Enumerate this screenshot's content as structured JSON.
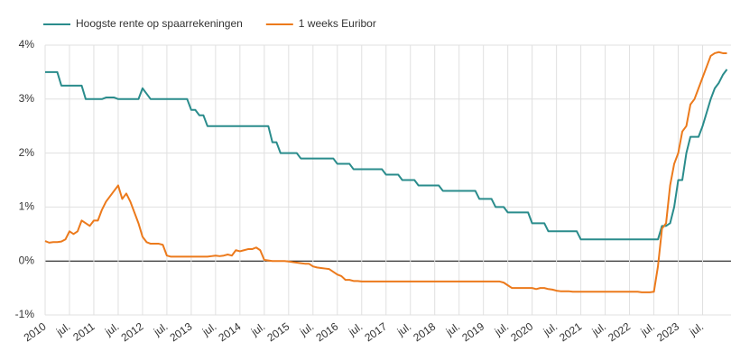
{
  "chart_data": {
    "type": "line",
    "x": [
      "2010-01",
      "2010-02",
      "2010-03",
      "2010-04",
      "2010-05",
      "2010-06",
      "2010-07",
      "2010-08",
      "2010-09",
      "2010-10",
      "2010-11",
      "2010-12",
      "2011-01",
      "2011-02",
      "2011-03",
      "2011-04",
      "2011-05",
      "2011-06",
      "2011-07",
      "2011-08",
      "2011-09",
      "2011-10",
      "2011-11",
      "2011-12",
      "2012-01",
      "2012-02",
      "2012-03",
      "2012-04",
      "2012-05",
      "2012-06",
      "2012-07",
      "2012-08",
      "2012-09",
      "2012-10",
      "2012-11",
      "2012-12",
      "2013-01",
      "2013-02",
      "2013-03",
      "2013-04",
      "2013-05",
      "2013-06",
      "2013-07",
      "2013-08",
      "2013-09",
      "2013-10",
      "2013-11",
      "2013-12",
      "2014-01",
      "2014-02",
      "2014-03",
      "2014-04",
      "2014-05",
      "2014-06",
      "2014-07",
      "2014-08",
      "2014-09",
      "2014-10",
      "2014-11",
      "2014-12",
      "2015-01",
      "2015-02",
      "2015-03",
      "2015-04",
      "2015-05",
      "2015-06",
      "2015-07",
      "2015-08",
      "2015-09",
      "2015-10",
      "2015-11",
      "2015-12",
      "2016-01",
      "2016-02",
      "2016-03",
      "2016-04",
      "2016-05",
      "2016-06",
      "2016-07",
      "2016-08",
      "2016-09",
      "2016-10",
      "2016-11",
      "2016-12",
      "2017-01",
      "2017-02",
      "2017-03",
      "2017-04",
      "2017-05",
      "2017-06",
      "2017-07",
      "2017-08",
      "2017-09",
      "2017-10",
      "2017-11",
      "2017-12",
      "2018-01",
      "2018-02",
      "2018-03",
      "2018-04",
      "2018-05",
      "2018-06",
      "2018-07",
      "2018-08",
      "2018-09",
      "2018-10",
      "2018-11",
      "2018-12",
      "2019-01",
      "2019-02",
      "2019-03",
      "2019-04",
      "2019-05",
      "2019-06",
      "2019-07",
      "2019-08",
      "2019-09",
      "2019-10",
      "2019-11",
      "2019-12",
      "2020-01",
      "2020-02",
      "2020-03",
      "2020-04",
      "2020-05",
      "2020-06",
      "2020-07",
      "2020-08",
      "2020-09",
      "2020-10",
      "2020-11",
      "2020-12",
      "2021-01",
      "2021-02",
      "2021-03",
      "2021-04",
      "2021-05",
      "2021-06",
      "2021-07",
      "2021-08",
      "2021-09",
      "2021-10",
      "2021-11",
      "2021-12",
      "2022-01",
      "2022-02",
      "2022-03",
      "2022-04",
      "2022-05",
      "2022-06",
      "2022-07",
      "2022-08",
      "2022-09",
      "2022-10",
      "2022-11",
      "2022-12",
      "2023-01",
      "2023-02",
      "2023-03",
      "2023-04",
      "2023-05",
      "2023-06",
      "2023-07",
      "2023-08",
      "2023-09",
      "2023-10",
      "2023-11",
      "2023-12",
      "2024-01"
    ],
    "series": [
      {
        "name": "Hoogste rente op spaarrekeningen",
        "color": "#2a8c8c",
        "values": [
          3.5,
          3.5,
          3.5,
          3.5,
          3.25,
          3.25,
          3.25,
          3.25,
          3.25,
          3.25,
          3.0,
          3.0,
          3.0,
          3.0,
          3.0,
          3.03,
          3.03,
          3.03,
          3.0,
          3.0,
          3.0,
          3.0,
          3.0,
          3.0,
          3.2,
          3.1,
          3.0,
          3.0,
          3.0,
          3.0,
          3.0,
          3.0,
          3.0,
          3.0,
          3.0,
          3.0,
          2.8,
          2.8,
          2.7,
          2.7,
          2.5,
          2.5,
          2.5,
          2.5,
          2.5,
          2.5,
          2.5,
          2.5,
          2.5,
          2.5,
          2.5,
          2.5,
          2.5,
          2.5,
          2.5,
          2.5,
          2.2,
          2.2,
          2.0,
          2.0,
          2.0,
          2.0,
          2.0,
          1.9,
          1.9,
          1.9,
          1.9,
          1.9,
          1.9,
          1.9,
          1.9,
          1.9,
          1.8,
          1.8,
          1.8,
          1.8,
          1.7,
          1.7,
          1.7,
          1.7,
          1.7,
          1.7,
          1.7,
          1.7,
          1.6,
          1.6,
          1.6,
          1.6,
          1.5,
          1.5,
          1.5,
          1.5,
          1.4,
          1.4,
          1.4,
          1.4,
          1.4,
          1.4,
          1.3,
          1.3,
          1.3,
          1.3,
          1.3,
          1.3,
          1.3,
          1.3,
          1.3,
          1.15,
          1.15,
          1.15,
          1.15,
          1.0,
          1.0,
          1.0,
          0.9,
          0.9,
          0.9,
          0.9,
          0.9,
          0.9,
          0.7,
          0.7,
          0.7,
          0.7,
          0.55,
          0.55,
          0.55,
          0.55,
          0.55,
          0.55,
          0.55,
          0.55,
          0.4,
          0.4,
          0.4,
          0.4,
          0.4,
          0.4,
          0.4,
          0.4,
          0.4,
          0.4,
          0.4,
          0.4,
          0.4,
          0.4,
          0.4,
          0.4,
          0.4,
          0.4,
          0.4,
          0.4,
          0.65,
          0.65,
          0.7,
          1.0,
          1.5,
          1.5,
          2.0,
          2.3,
          2.3,
          2.3,
          2.5,
          2.75,
          3.0,
          3.2,
          3.3,
          3.45,
          3.55
        ]
      },
      {
        "name": "1 weeks Euribor",
        "color": "#ec7a1c",
        "values": [
          0.37,
          0.34,
          0.35,
          0.35,
          0.36,
          0.4,
          0.55,
          0.5,
          0.55,
          0.75,
          0.7,
          0.65,
          0.75,
          0.75,
          0.95,
          1.1,
          1.2,
          1.3,
          1.4,
          1.15,
          1.25,
          1.1,
          0.9,
          0.7,
          0.45,
          0.35,
          0.32,
          0.32,
          0.32,
          0.3,
          0.1,
          0.08,
          0.08,
          0.08,
          0.08,
          0.08,
          0.08,
          0.08,
          0.08,
          0.08,
          0.08,
          0.09,
          0.1,
          0.09,
          0.1,
          0.12,
          0.1,
          0.2,
          0.18,
          0.2,
          0.22,
          0.22,
          0.25,
          0.2,
          0.02,
          0.01,
          0.0,
          0.0,
          0.0,
          0.0,
          -0.01,
          -0.02,
          -0.03,
          -0.04,
          -0.05,
          -0.05,
          -0.1,
          -0.12,
          -0.13,
          -0.14,
          -0.15,
          -0.2,
          -0.25,
          -0.28,
          -0.35,
          -0.35,
          -0.37,
          -0.37,
          -0.38,
          -0.38,
          -0.38,
          -0.38,
          -0.38,
          -0.38,
          -0.38,
          -0.38,
          -0.38,
          -0.38,
          -0.38,
          -0.38,
          -0.38,
          -0.38,
          -0.38,
          -0.38,
          -0.38,
          -0.38,
          -0.38,
          -0.38,
          -0.38,
          -0.38,
          -0.38,
          -0.38,
          -0.38,
          -0.38,
          -0.38,
          -0.38,
          -0.38,
          -0.38,
          -0.38,
          -0.38,
          -0.38,
          -0.38,
          -0.38,
          -0.4,
          -0.45,
          -0.5,
          -0.5,
          -0.5,
          -0.5,
          -0.5,
          -0.5,
          -0.52,
          -0.5,
          -0.5,
          -0.52,
          -0.53,
          -0.55,
          -0.56,
          -0.56,
          -0.56,
          -0.57,
          -0.57,
          -0.57,
          -0.57,
          -0.57,
          -0.57,
          -0.57,
          -0.57,
          -0.57,
          -0.57,
          -0.57,
          -0.57,
          -0.57,
          -0.57,
          -0.57,
          -0.57,
          -0.57,
          -0.58,
          -0.58,
          -0.58,
          -0.57,
          -0.1,
          0.6,
          0.7,
          1.4,
          1.8,
          2.0,
          2.4,
          2.5,
          2.9,
          3.0,
          3.2,
          3.4,
          3.6,
          3.8,
          3.85,
          3.87,
          3.85,
          3.85
        ]
      }
    ],
    "xlim": [
      "2010-01",
      "2024-02"
    ],
    "xticks": [
      {
        "value": "2010-01",
        "label": "2010"
      },
      {
        "value": "2010-07",
        "label": "jul."
      },
      {
        "value": "2011-01",
        "label": "2011"
      },
      {
        "value": "2011-07",
        "label": "jul."
      },
      {
        "value": "2012-01",
        "label": "2012"
      },
      {
        "value": "2012-07",
        "label": "jul."
      },
      {
        "value": "2013-01",
        "label": "2013"
      },
      {
        "value": "2013-07",
        "label": "jul."
      },
      {
        "value": "2014-01",
        "label": "2014"
      },
      {
        "value": "2014-07",
        "label": "jul."
      },
      {
        "value": "2015-01",
        "label": "2015"
      },
      {
        "value": "2015-07",
        "label": "jul."
      },
      {
        "value": "2016-01",
        "label": "2016"
      },
      {
        "value": "2016-07",
        "label": "jul."
      },
      {
        "value": "2017-01",
        "label": "2017"
      },
      {
        "value": "2017-07",
        "label": "jul."
      },
      {
        "value": "2018-01",
        "label": "2018"
      },
      {
        "value": "2018-07",
        "label": "jul."
      },
      {
        "value": "2019-01",
        "label": "2019"
      },
      {
        "value": "2019-07",
        "label": "jul."
      },
      {
        "value": "2020-01",
        "label": "2020"
      },
      {
        "value": "2020-07",
        "label": "jul."
      },
      {
        "value": "2021-01",
        "label": "2021"
      },
      {
        "value": "2021-07",
        "label": "jul."
      },
      {
        "value": "2022-01",
        "label": "2022"
      },
      {
        "value": "2022-07",
        "label": "jul."
      },
      {
        "value": "2023-01",
        "label": "2023"
      },
      {
        "value": "2023-07",
        "label": "jul."
      }
    ],
    "ylim": [
      -1,
      4
    ],
    "yticks": [
      {
        "value": -1,
        "label": "-1%"
      },
      {
        "value": 0,
        "label": "0%"
      },
      {
        "value": 1,
        "label": "1%"
      },
      {
        "value": 2,
        "label": "2%"
      },
      {
        "value": 3,
        "label": "3%"
      },
      {
        "value": 4,
        "label": "4%"
      }
    ],
    "grid": true
  }
}
